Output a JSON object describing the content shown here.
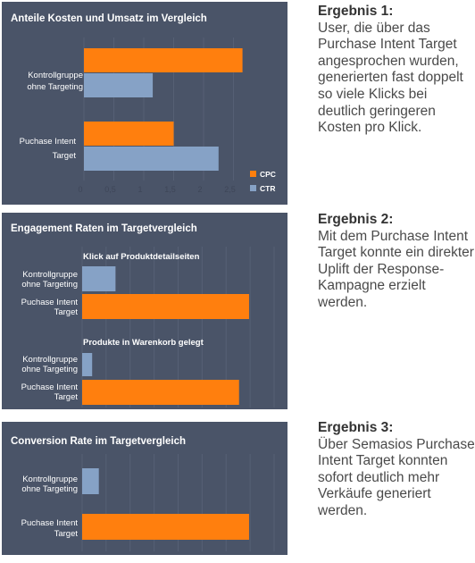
{
  "colors": {
    "panel": "#4a5468",
    "orange": "#ff7f0e",
    "blue": "#86a2c6",
    "grid": "#566075",
    "tick": "#3e4658"
  },
  "chart_data": [
    {
      "type": "bar",
      "orientation": "horizontal",
      "title": "Anteile Kosten und Umsatz im Vergleich",
      "categories": [
        [
          "Kontrollgruppe",
          "ohne Targeting"
        ],
        [
          "Puchase Intent",
          "Target"
        ]
      ],
      "series": [
        {
          "name": "CPC",
          "color": "#ff7f0e",
          "values": [
            2.65,
            1.5
          ]
        },
        {
          "name": "CTR",
          "color": "#86a2c6",
          "values": [
            1.15,
            2.25
          ]
        }
      ],
      "xlim": [
        0,
        2.85
      ],
      "xticks": [
        {
          "v": 0,
          "label": "0"
        },
        {
          "v": 0.5,
          "label": "0,5"
        },
        {
          "v": 1,
          "label": "1"
        },
        {
          "v": 1.5,
          "label": "1,5"
        },
        {
          "v": 2,
          "label": "2"
        },
        {
          "v": 2.5,
          "label": "2,5"
        }
      ],
      "legend": "bottom-right"
    },
    {
      "type": "bar",
      "orientation": "horizontal",
      "title": "Engagement Raten im Targetvergleich",
      "groups": [
        {
          "subtitle": "Klick auf Produktdetailseiten",
          "categories": [
            [
              "Kontrollgruppe",
              "ohne Targeting"
            ],
            [
              "Puchase Intent",
              "Target"
            ]
          ],
          "values": [
            0.2,
            1.0
          ],
          "colors": [
            "#86a2c6",
            "#ff7f0e"
          ]
        },
        {
          "subtitle": "Produkte in Warenkorb gelegt",
          "categories": [
            [
              "Kontrollgruppe",
              "ohne Targeting"
            ],
            [
              "Puchase Intent",
              "Target"
            ]
          ],
          "values": [
            0.06,
            0.94
          ],
          "colors": [
            "#86a2c6",
            "#ff7f0e"
          ]
        }
      ],
      "xlim": [
        0,
        1.15
      ]
    },
    {
      "type": "bar",
      "orientation": "horizontal",
      "title": "Conversion Rate im Targetvergleich",
      "categories": [
        [
          "Kontrollgruppe",
          "ohne Targeting"
        ],
        [
          "Puchase Intent",
          "Target"
        ]
      ],
      "values": [
        0.1,
        1.0
      ],
      "colors": [
        "#86a2c6",
        "#ff7f0e"
      ],
      "xlim": [
        0,
        1.15
      ]
    }
  ],
  "results": [
    {
      "heading": "Ergebnis 1:",
      "text": "User, die über das Purchase Intent Target angesprochen wurden, generierten fast doppelt so viele Klicks bei deutlich geringeren Kosten pro Klick."
    },
    {
      "heading": "Ergebnis 2:",
      "text": "Mit dem Purchase Intent Target konnte ein direkter Uplift der Response-Kampagne erzielt werden."
    },
    {
      "heading": "Ergebnis 3:",
      "text": "Über Semasios Purchase Intent Target konnten sofort deutlich mehr Verkäufe generiert werden."
    }
  ]
}
